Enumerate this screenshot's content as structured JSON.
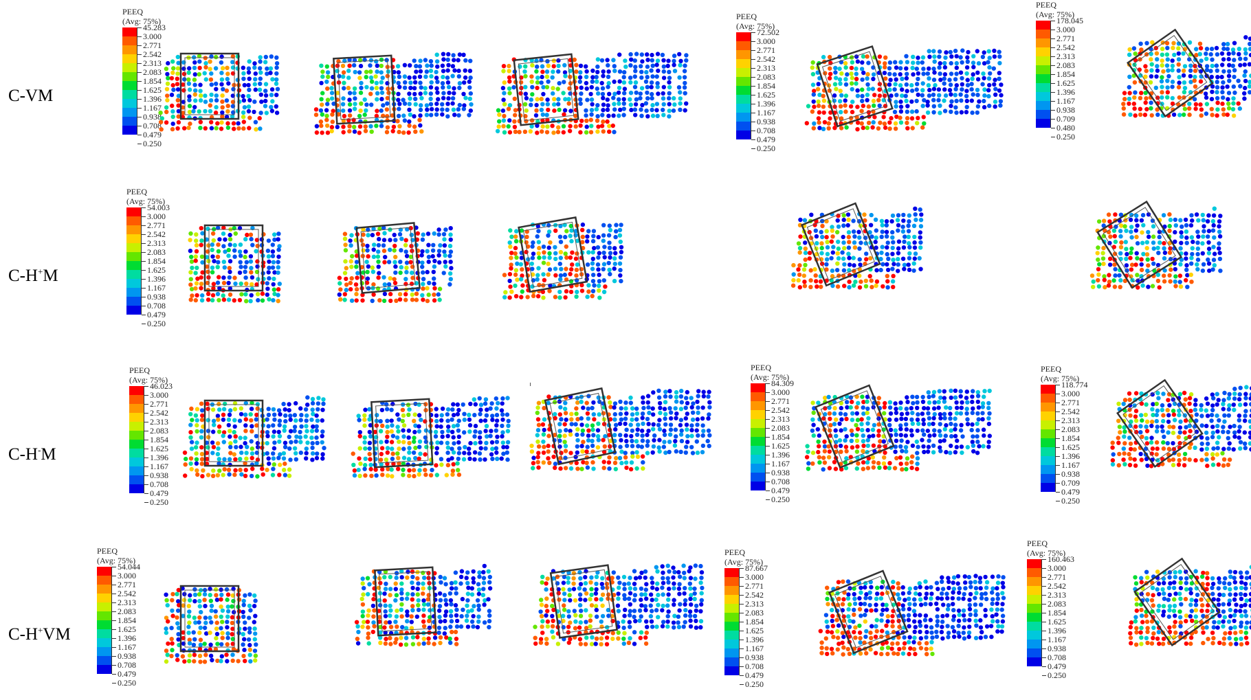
{
  "rows": [
    {
      "base": "C-VM",
      "sup": "",
      "tail": ""
    },
    {
      "base": "C-H",
      "sup": "+",
      "tail": "M"
    },
    {
      "base": "C-H",
      "sup": "-",
      "tail": "M"
    },
    {
      "base": "C-H",
      "sup": "+",
      "tail": "VM"
    }
  ],
  "legend_title": "PEEQ",
  "legend_subtitle": "(Avg: 75%)",
  "legend_colors": [
    "#ff0000",
    "#ff5a00",
    "#ff9600",
    "#ffd200",
    "#c8f000",
    "#64e600",
    "#00dc32",
    "#00dca0",
    "#00c8dc",
    "#0096f0",
    "#0050f0",
    "#0000e6"
  ],
  "legends": [
    {
      "id": "vm-1",
      "max": "45.283",
      "values": [
        "3.000",
        "2.771",
        "2.542",
        "2.313",
        "2.083",
        "1.854",
        "1.625",
        "1.396",
        "1.167",
        "0.938",
        "0.708",
        "0.479",
        "0.250"
      ]
    },
    {
      "id": "vm-4",
      "max": "72.502",
      "values": [
        "3.000",
        "2.771",
        "2.542",
        "2.313",
        "2.083",
        "1.854",
        "1.625",
        "1.396",
        "1.167",
        "0.938",
        "0.708",
        "0.479",
        "0.250"
      ]
    },
    {
      "id": "vm-5",
      "max": "178.045",
      "values": [
        "3.000",
        "2.771",
        "2.542",
        "2.313",
        "2.083",
        "1.854",
        "1.625",
        "1.396",
        "1.167",
        "0.938",
        "0.709",
        "0.480",
        "0.250"
      ]
    },
    {
      "id": "hpm-1",
      "max": "54.003",
      "values": [
        "3.000",
        "2.771",
        "2.542",
        "2.313",
        "2.083",
        "1.854",
        "1.625",
        "1.396",
        "1.167",
        "0.938",
        "0.708",
        "0.479",
        "0.250"
      ]
    },
    {
      "id": "hmm-1",
      "max": "46.023",
      "values": [
        "3.000",
        "2.771",
        "2.542",
        "2.313",
        "2.083",
        "1.854",
        "1.625",
        "1.396",
        "1.167",
        "0.938",
        "0.708",
        "0.479",
        "0.250"
      ]
    },
    {
      "id": "hmm-4",
      "max": "84.309",
      "values": [
        "3.000",
        "2.771",
        "2.542",
        "2.313",
        "2.083",
        "1.854",
        "1.625",
        "1.396",
        "1.167",
        "0.938",
        "0.708",
        "0.479",
        "0.250"
      ]
    },
    {
      "id": "hmm-5",
      "max": "118.774",
      "values": [
        "3.000",
        "2.771",
        "2.542",
        "2.313",
        "2.083",
        "1.854",
        "1.625",
        "1.396",
        "1.167",
        "0.938",
        "0.709",
        "0.479",
        "0.250"
      ]
    },
    {
      "id": "hpvm-1",
      "max": "54.044",
      "values": [
        "3.000",
        "2.771",
        "2.542",
        "2.313",
        "2.083",
        "1.854",
        "1.625",
        "1.396",
        "1.167",
        "0.938",
        "0.708",
        "0.479",
        "0.250"
      ]
    },
    {
      "id": "hpvm-4",
      "max": "87.667",
      "values": [
        "3.000",
        "2.771",
        "2.542",
        "2.313",
        "2.083",
        "1.854",
        "1.625",
        "1.396",
        "1.167",
        "0.938",
        "0.708",
        "0.479",
        "0.250"
      ]
    },
    {
      "id": "hpvm-5",
      "max": "160.463",
      "values": [
        "3.000",
        "2.771",
        "2.542",
        "2.313",
        "2.083",
        "1.854",
        "1.625",
        "1.396",
        "1.167",
        "0.938",
        "0.708",
        "0.479",
        "0.250"
      ]
    }
  ],
  "plots": [
    {
      "id": "vm-1",
      "rot": 0,
      "tail": 0.4,
      "red": 0.35
    },
    {
      "id": "vm-2",
      "rot": 3,
      "tail": 1.0,
      "red": 0.45
    },
    {
      "id": "vm-3",
      "rot": 6,
      "tail": 1.5,
      "red": 0.55
    },
    {
      "id": "vm-4",
      "rot": 18,
      "tail": 1.6,
      "red": 0.6
    },
    {
      "id": "vm-5",
      "rot": 35,
      "tail": 1.7,
      "red": 0.55
    },
    {
      "id": "hpm-1",
      "rot": 0,
      "tail": 0.0,
      "red": 0.3
    },
    {
      "id": "hpm-2",
      "rot": 5,
      "tail": 0.3,
      "red": 0.35
    },
    {
      "id": "hpm-3",
      "rot": 10,
      "tail": 0.4,
      "red": 0.35
    },
    {
      "id": "hpm-4",
      "rot": 22,
      "tail": 0.5,
      "red": 0.35
    },
    {
      "id": "hpm-5",
      "rot": 32,
      "tail": 0.5,
      "red": 0.35
    },
    {
      "id": "hmm-1",
      "rot": 0,
      "tail": 0.7,
      "red": 0.3
    },
    {
      "id": "hmm-2",
      "rot": 3,
      "tail": 1.0,
      "red": 0.35
    },
    {
      "id": "hmm-3",
      "rot": 12,
      "tail": 1.3,
      "red": 0.45
    },
    {
      "id": "hmm-4",
      "rot": 22,
      "tail": 1.4,
      "red": 0.5
    },
    {
      "id": "hmm-5",
      "rot": 35,
      "tail": 1.5,
      "red": 0.55
    },
    {
      "id": "hpvm-1",
      "rot": 0,
      "tail": 0.0,
      "red": 0.35
    },
    {
      "id": "hpvm-2",
      "rot": 3,
      "tail": 0.6,
      "red": 0.45
    },
    {
      "id": "hpvm-3",
      "rot": 8,
      "tail": 1.2,
      "red": 0.5
    },
    {
      "id": "hpvm-4",
      "rot": 22,
      "tail": 1.4,
      "red": 0.6
    },
    {
      "id": "hpvm-5",
      "rot": 35,
      "tail": 1.6,
      "red": 0.6
    }
  ]
}
